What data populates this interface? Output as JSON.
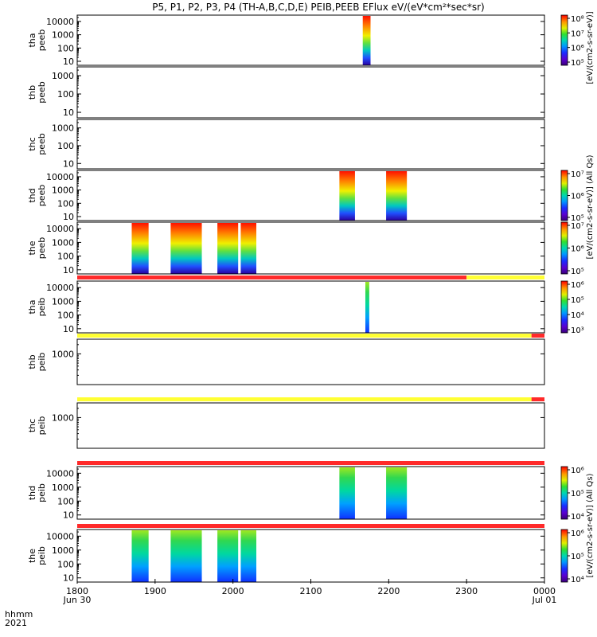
{
  "title": "P5, P1, P2, P3, P4 (TH-A,B,C,D,E) PEIB,PEEB EFlux eV/(eV*cm²*sec*sr)",
  "footer": {
    "row1_label": "hhmm",
    "row2_label": "2021",
    "tick_labels": [
      "1800",
      "1900",
      "2000",
      "2100",
      "2200",
      "2300",
      "0000"
    ],
    "date_labels": [
      {
        "text": "Jun 30",
        "at": 1800
      },
      {
        "text": "Jul 01",
        "at": 2400
      }
    ]
  },
  "colorbar_labels": {
    "peeb_a": "[eV/(cm2-s-sr-eV)]",
    "peeb": "[eV/(cm2-s-sr-eV)] (All Qs)",
    "peib": "[eV/(cm2-s-sr-eV)] (All Qs)"
  },
  "chart_data": {
    "type": "heatmap",
    "x_unit": "hhmm UT",
    "x_range": [
      1800,
      2400
    ],
    "colormap": "rainbow (purple low → red high)",
    "panels": [
      {
        "id": "tha-peeb",
        "probe_label": "tha",
        "product_label": "peeb",
        "yscale": "log",
        "yticks": [
          "10",
          "100",
          "1000",
          "10000"
        ],
        "ylim": [
          5,
          30000
        ],
        "colorbar_ticks": [
          "10⁵",
          "10⁶",
          "10⁷",
          "10⁸"
        ],
        "colorbar_label": "peeb_a",
        "data_intervals": [
          [
            2140,
            2146
          ]
        ]
      },
      {
        "id": "thb-peeb",
        "probe_label": "thb",
        "product_label": "peeb",
        "yscale": "log",
        "yticks": [
          "10",
          "100",
          "1000"
        ],
        "ylim": [
          5,
          3000
        ],
        "colorbar_ticks": [],
        "data_intervals": []
      },
      {
        "id": "thc-peeb",
        "probe_label": "thc",
        "product_label": "peeb",
        "yscale": "log",
        "yticks": [
          "10",
          "100",
          "1000"
        ],
        "ylim": [
          5,
          3000
        ],
        "colorbar_ticks": [],
        "data_intervals": []
      },
      {
        "id": "thd-peeb",
        "probe_label": "thd",
        "product_label": "peeb",
        "yscale": "log",
        "yticks": [
          "10",
          "100",
          "1000",
          "10000"
        ],
        "ylim": [
          5,
          30000
        ],
        "colorbar_ticks": [
          "10⁵",
          "10⁶",
          "10⁷"
        ],
        "colorbar_label": "peeb",
        "data_intervals": [
          [
            2122,
            2134
          ],
          [
            2158,
            2174
          ]
        ]
      },
      {
        "id": "the-peeb",
        "probe_label": "the",
        "product_label": "peeb",
        "yscale": "log",
        "yticks": [
          "10",
          "100",
          "1000",
          "10000"
        ],
        "ylim": [
          5,
          30000
        ],
        "colorbar_ticks": [
          "10⁵",
          "10⁶",
          "10⁷"
        ],
        "colorbar_label": "peeb",
        "data_intervals": [
          [
            1842,
            1855
          ],
          [
            1872,
            1896
          ],
          [
            1948,
            1964
          ],
          [
            2006,
            2018
          ]
        ]
      },
      {
        "id": "tha-peib",
        "probe_label": "tha",
        "product_label": "peib",
        "yscale": "log",
        "yticks": [
          "10",
          "100",
          "1000",
          "10000"
        ],
        "ylim": [
          5,
          30000
        ],
        "colorbar_ticks": [
          "10³",
          "10⁴",
          "10⁵",
          "10⁶"
        ],
        "colorbar_label": "peib",
        "data_intervals": [
          [
            2142,
            2145
          ]
        ]
      },
      {
        "id": "thb-peib",
        "probe_label": "thb",
        "product_label": "peib",
        "yscale": "log",
        "yticks": [
          "1000"
        ],
        "ylim": [
          100,
          3000
        ],
        "colorbar_ticks": [],
        "data_intervals": []
      },
      {
        "id": "thc-peib",
        "probe_label": "thc",
        "product_label": "peib",
        "yscale": "log",
        "yticks": [
          "1000"
        ],
        "ylim": [
          100,
          3000
        ],
        "colorbar_ticks": [],
        "data_intervals": []
      },
      {
        "id": "thd-peib",
        "probe_label": "thd",
        "product_label": "peib",
        "yscale": "log",
        "yticks": [
          "10",
          "100",
          "1000",
          "10000"
        ],
        "ylim": [
          5,
          30000
        ],
        "colorbar_ticks": [
          "10⁴",
          "10⁵",
          "10⁶"
        ],
        "colorbar_label": "peib",
        "data_intervals": [
          [
            2122,
            2134
          ],
          [
            2158,
            2174
          ]
        ]
      },
      {
        "id": "the-peib",
        "probe_label": "the",
        "product_label": "peib",
        "yscale": "log",
        "yticks": [
          "10",
          "100",
          "1000",
          "10000"
        ],
        "ylim": [
          5,
          30000
        ],
        "colorbar_ticks": [
          "10⁴",
          "10⁵",
          "10⁶"
        ],
        "colorbar_label": "peib",
        "data_intervals": [
          [
            1842,
            1855
          ],
          [
            1872,
            1896
          ],
          [
            1948,
            1964
          ],
          [
            2006,
            2018
          ]
        ]
      }
    ],
    "mode_bars": [
      {
        "after_panel": 5,
        "segments": [
          {
            "from": 1800,
            "to": 2300,
            "color": "#ff2a2a"
          },
          {
            "from": 2300,
            "to": 2400,
            "color": "#ffff33"
          }
        ]
      },
      {
        "after_panel": 6,
        "segments": [
          {
            "from": 1800,
            "to": 2350,
            "color": "#ffff33"
          },
          {
            "from": 2350,
            "to": 2400,
            "color": "#ff2a2a"
          }
        ]
      },
      {
        "after_panel": 7,
        "segments": [
          {
            "from": 1800,
            "to": 2350,
            "color": "#ffff33"
          },
          {
            "from": 2350,
            "to": 2400,
            "color": "#ff2a2a"
          }
        ]
      },
      {
        "after_panel": 8,
        "segments": [
          {
            "from": 1800,
            "to": 2400,
            "color": "#ff2a2a"
          }
        ]
      },
      {
        "after_panel": 9,
        "segments": [
          {
            "from": 1800,
            "to": 2400,
            "color": "#ff2a2a"
          }
        ]
      }
    ]
  }
}
